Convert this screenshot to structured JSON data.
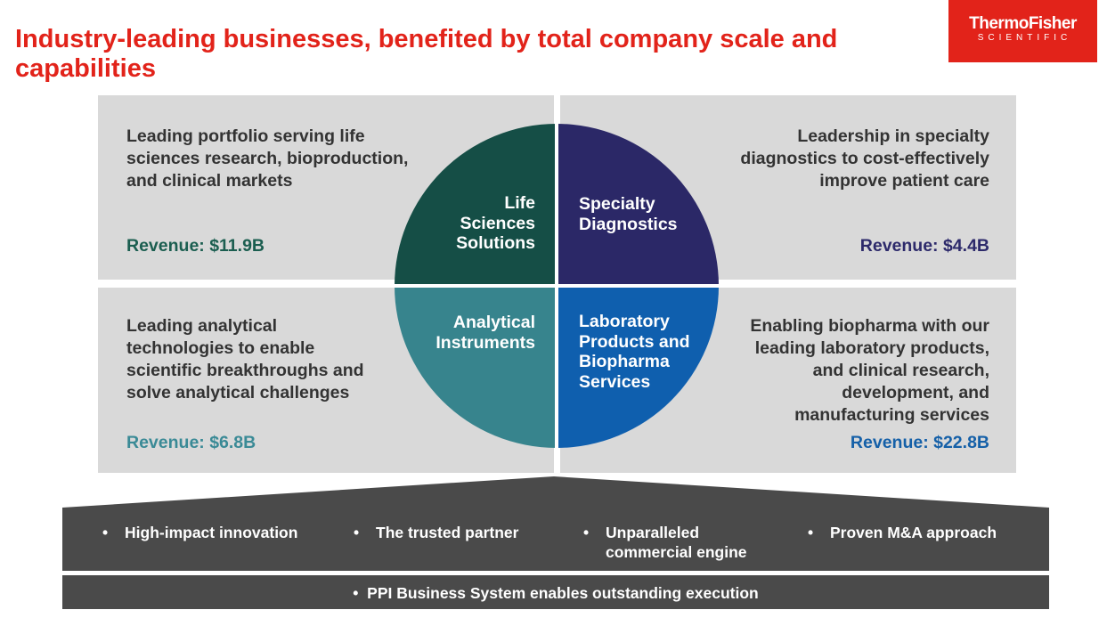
{
  "title": "Industry-leading businesses, benefited by total company scale and capabilities",
  "logo": {
    "line1": "ThermoFisher",
    "line2": "SCIENTIFIC",
    "color": "#e2231a"
  },
  "segments": {
    "life_sciences": {
      "label": "Life Sciences Solutions",
      "label_lines": [
        "Life",
        "Sciences",
        "Solutions"
      ],
      "description": "Leading portfolio serving life sciences research, bioproduction, and clinical markets",
      "description_lines": [
        "Leading portfolio serving life",
        "sciences research, bioproduction,",
        "and clinical markets"
      ],
      "revenue": "Revenue: $11.9B",
      "color": "#154e46"
    },
    "specialty_diagnostics": {
      "label": "Specialty Diagnostics",
      "label_lines": [
        "Specialty",
        "Diagnostics"
      ],
      "description": "Leadership in specialty diagnostics to cost-effectively improve patient care",
      "description_lines": [
        "Leadership in specialty",
        "diagnostics to cost-effectively",
        "improve patient care"
      ],
      "revenue": "Revenue: $4.4B",
      "color": "#2b2867"
    },
    "analytical_instruments": {
      "label": "Analytical Instruments",
      "label_lines": [
        "Analytical",
        "Instruments"
      ],
      "description": "Leading analytical technologies to enable scientific breakthroughs and solve analytical challenges",
      "description_lines": [
        "Leading analytical",
        "technologies to enable",
        "scientific breakthroughs and",
        "solve analytical challenges"
      ],
      "revenue": "Revenue: $6.8B",
      "color": "#37848d"
    },
    "lab_products": {
      "label": "Laboratory Products and Biopharma Services",
      "label_lines": [
        "Laboratory",
        "Products and",
        "Biopharma",
        "Services"
      ],
      "description": "Enabling biopharma with our leading laboratory products, and clinical research, development, and manufacturing services",
      "description_lines": [
        "Enabling biopharma with our",
        "leading laboratory products,",
        "and clinical research,",
        "development, and",
        "manufacturing services"
      ],
      "revenue": "Revenue: $22.8B",
      "color": "#0f5fae"
    }
  },
  "pillars": [
    {
      "lines": [
        "High-impact innovation"
      ]
    },
    {
      "lines": [
        "The trusted partner"
      ]
    },
    {
      "lines": [
        "Unparalleled",
        "commercial engine"
      ]
    },
    {
      "lines": [
        "Proven M&A approach"
      ]
    }
  ],
  "bullet": "•",
  "foundation": "PPI Business System enables outstanding execution"
}
